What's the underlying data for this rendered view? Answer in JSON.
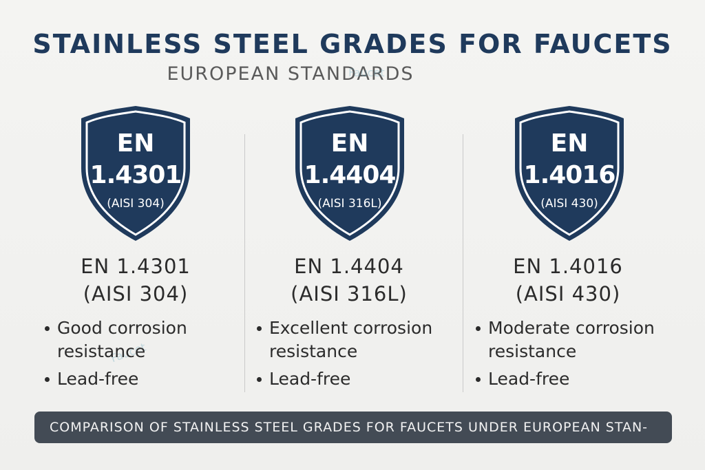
{
  "header": {
    "title": "STAINLESS STEEL GRADES FOR FAUCETS",
    "subtitle": "EUROPEAN STANDARDS"
  },
  "watermark": {
    "text": "Faucet"
  },
  "grades": [
    {
      "shield_en": "EN",
      "shield_number": "1.4301",
      "shield_aisi": "(AISI 304)",
      "name": "EN 1.4301",
      "aisi": "(AISI 304)",
      "bullets": [
        "Good corrosion resistance",
        "Lead-free"
      ]
    },
    {
      "shield_en": "EN",
      "shield_number": "1.4404",
      "shield_aisi": "(AISI 316L)",
      "name": "EN 1.4404",
      "aisi": "(AISI 316L)",
      "bullets": [
        "Excellent corrosion resistance",
        "Lead-free"
      ]
    },
    {
      "shield_en": "EN",
      "shield_number": "1.4016",
      "shield_aisi": "(AISI 430)",
      "name": "EN 1.4016",
      "aisi": "(AISI 430)",
      "bullets": [
        "Moderate corrosion resistance",
        "Lead-free"
      ]
    }
  ],
  "footer": {
    "caption": "COMPARISON OF STAINLESS STEEL GRADES FOR FAUCETS UNDER EUROPEAN STAN-"
  },
  "colors": {
    "shield_fill": "#1f3a5c",
    "title": "#1f3a5c",
    "banner": "#434b55"
  },
  "icons": {
    "shield": "shield-icon"
  }
}
